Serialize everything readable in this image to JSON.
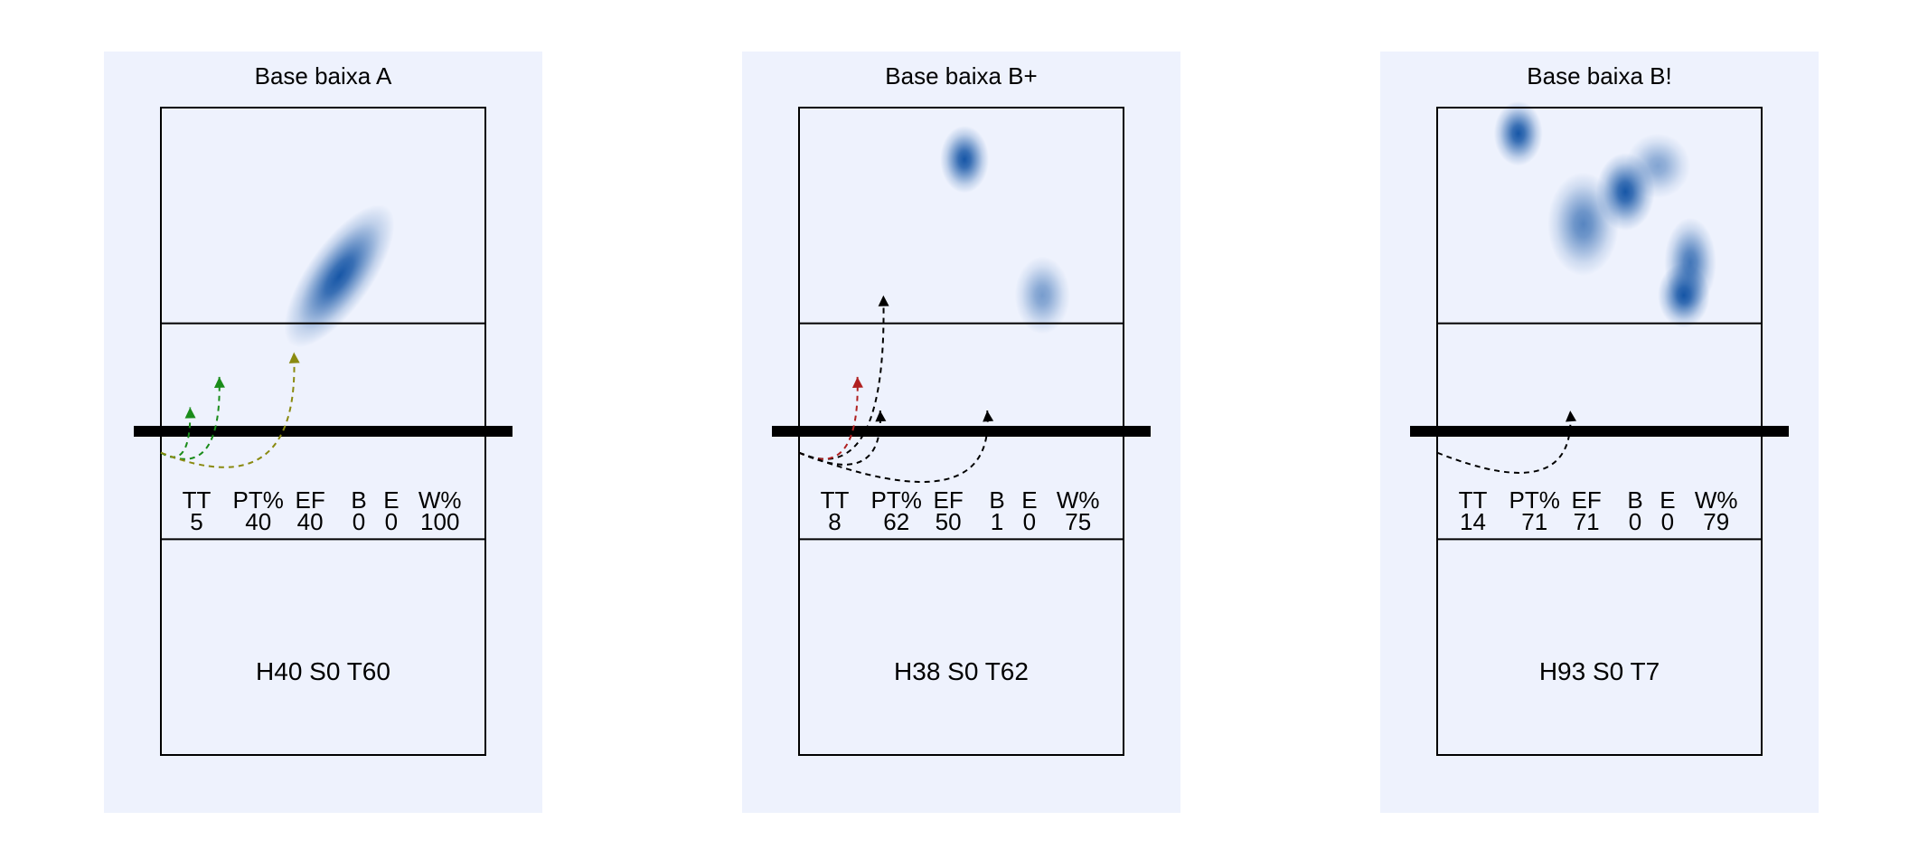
{
  "chart_data": [
    {
      "type": "heatmap",
      "title": "Base baixa A",
      "stats_header": [
        "TT",
        "PT%",
        "EF",
        "B",
        "E",
        "W%"
      ],
      "stats_values": [
        "5",
        "40",
        "40",
        "0",
        "0",
        "100"
      ],
      "footer": "H40 S0 T60",
      "heat": [
        {
          "x": 0.55,
          "y": 0.26,
          "sx": 0.1,
          "sy": 0.13,
          "w": 1.0
        }
      ],
      "arrows": [
        {
          "from": [
            0.0,
            0.533
          ],
          "to": [
            0.09,
            0.463
          ],
          "color": "#1a8c1a"
        },
        {
          "from": [
            0.0,
            0.533
          ],
          "to": [
            0.18,
            0.416
          ],
          "color": "#1a8c1a"
        },
        {
          "from": [
            0.0,
            0.533
          ],
          "to": [
            0.41,
            0.378
          ],
          "color": "#8a8a10"
        }
      ],
      "colors": {
        "panel_bg": "#eef2fd",
        "heat": "#0b4ea2"
      }
    },
    {
      "type": "heatmap",
      "title": "Base baixa B+",
      "stats_header": [
        "TT",
        "PT%",
        "EF",
        "B",
        "E",
        "W%"
      ],
      "stats_values": [
        "8",
        "62",
        "50",
        "1",
        "0",
        "75"
      ],
      "footer": "H38 S0 T62",
      "heat": [
        {
          "x": 0.51,
          "y": 0.08,
          "sx": 0.075,
          "sy": 0.052,
          "w": 1.0
        },
        {
          "x": 0.75,
          "y": 0.29,
          "sx": 0.085,
          "sy": 0.06,
          "w": 0.55
        }
      ],
      "arrows": [
        {
          "from": [
            0.0,
            0.533
          ],
          "to": [
            0.26,
            0.29
          ],
          "color": "#000000"
        },
        {
          "from": [
            0.0,
            0.533
          ],
          "to": [
            0.18,
            0.416
          ],
          "color": "#b02020"
        },
        {
          "from": [
            0.0,
            0.533
          ],
          "to": [
            0.25,
            0.468
          ],
          "color": "#000000"
        },
        {
          "from": [
            0.0,
            0.533
          ],
          "to": [
            0.58,
            0.468
          ],
          "color": "#000000"
        }
      ],
      "colors": {
        "panel_bg": "#eef2fd",
        "heat": "#0b4ea2"
      }
    },
    {
      "type": "heatmap",
      "title": "Base baixa B!",
      "stats_header": [
        "TT",
        "PT%",
        "EF",
        "B",
        "E",
        "W%"
      ],
      "stats_values": [
        "14",
        "71",
        "71",
        "0",
        "0",
        "79"
      ],
      "footer": "H93 S0 T7",
      "heat": [
        {
          "x": 0.25,
          "y": 0.04,
          "sx": 0.075,
          "sy": 0.05,
          "w": 1.0
        },
        {
          "x": 0.58,
          "y": 0.13,
          "sx": 0.09,
          "sy": 0.06,
          "w": 1.0
        },
        {
          "x": 0.45,
          "y": 0.18,
          "sx": 0.11,
          "sy": 0.08,
          "w": 0.7
        },
        {
          "x": 0.78,
          "y": 0.24,
          "sx": 0.08,
          "sy": 0.07,
          "w": 0.8
        },
        {
          "x": 0.76,
          "y": 0.29,
          "sx": 0.08,
          "sy": 0.05,
          "w": 1.0
        },
        {
          "x": 0.68,
          "y": 0.09,
          "sx": 0.1,
          "sy": 0.05,
          "w": 0.5
        }
      ],
      "arrows": [
        {
          "from": [
            0.0,
            0.533
          ],
          "to": [
            0.41,
            0.468
          ],
          "color": "#000000"
        }
      ],
      "colors": {
        "panel_bg": "#eef2fd",
        "heat": "#0b4ea2"
      }
    }
  ]
}
